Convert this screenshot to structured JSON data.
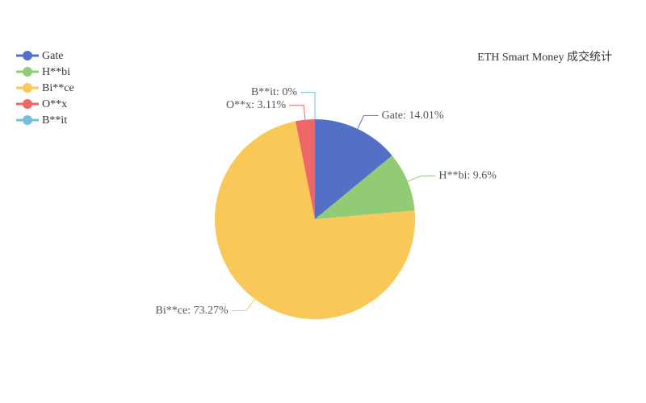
{
  "chart_data": {
    "type": "pie",
    "title": "ETH Smart Money 成交统计",
    "categories": [
      "Gate",
      "H**bi",
      "Bi**ce",
      "O**x",
      "B**it"
    ],
    "values": [
      14.01,
      9.6,
      73.27,
      3.11,
      0
    ],
    "value_labels": [
      "Gate: 14.01%",
      "H**bi: 9.6%",
      "Bi**ce: 73.27%",
      "O**x: 3.11%",
      "B**it: 0%"
    ],
    "colors": [
      "#5470c6",
      "#91cc75",
      "#fac858",
      "#ee6666",
      "#73c0de"
    ],
    "legend": "top-left"
  }
}
